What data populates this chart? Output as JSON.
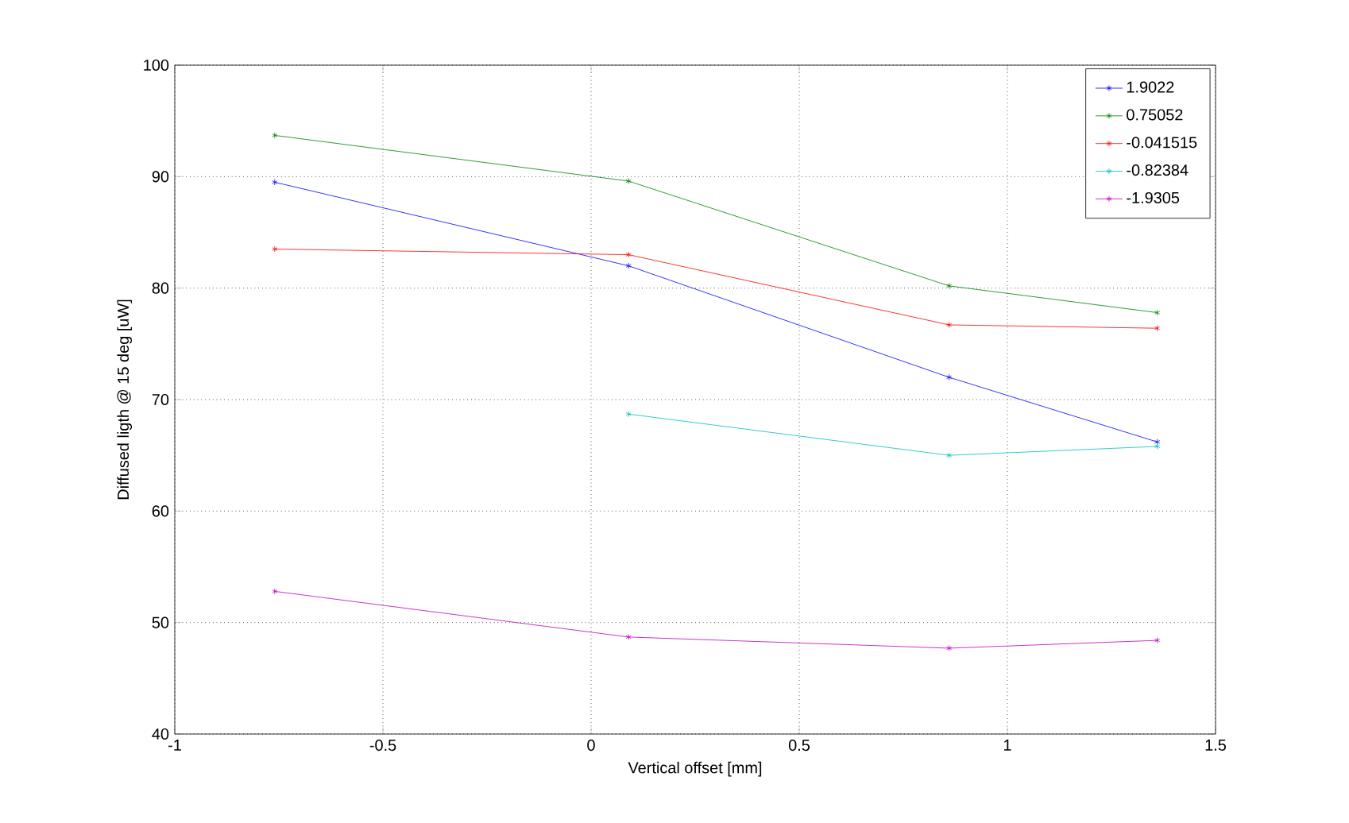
{
  "chart_data": {
    "type": "line",
    "xlabel": "Vertical offset [mm]",
    "ylabel": "Diffused ligth @ 15 deg [uW]",
    "x": [
      -0.76,
      0.09,
      0.86,
      1.36
    ],
    "series": [
      {
        "name": "1.9022",
        "color": "#0000ff",
        "values": [
          89.5,
          82,
          72,
          66.2
        ]
      },
      {
        "name": "0.75052",
        "color": "#008000",
        "values": [
          93.7,
          89.6,
          80.2,
          77.8
        ]
      },
      {
        "name": "-0.041515",
        "color": "#ff0000",
        "values": [
          83.5,
          83,
          76.7,
          76.4
        ]
      },
      {
        "name": "-0.82384",
        "color": "#00bfbf",
        "values": [
          null,
          68.7,
          65,
          65.8
        ]
      },
      {
        "name": "-1.9305",
        "color": "#bf00bf",
        "values": [
          52.8,
          48.7,
          47.7,
          48.4
        ]
      }
    ],
    "xlim": [
      -1,
      1.5
    ],
    "ylim": [
      40,
      100
    ],
    "xticks": [
      -1,
      -0.5,
      0,
      0.5,
      1,
      1.5
    ],
    "yticks": [
      40,
      50,
      60,
      70,
      80,
      90,
      100
    ],
    "grid": true,
    "legend": "top right",
    "marker": "cross",
    "line_style": "solid"
  }
}
